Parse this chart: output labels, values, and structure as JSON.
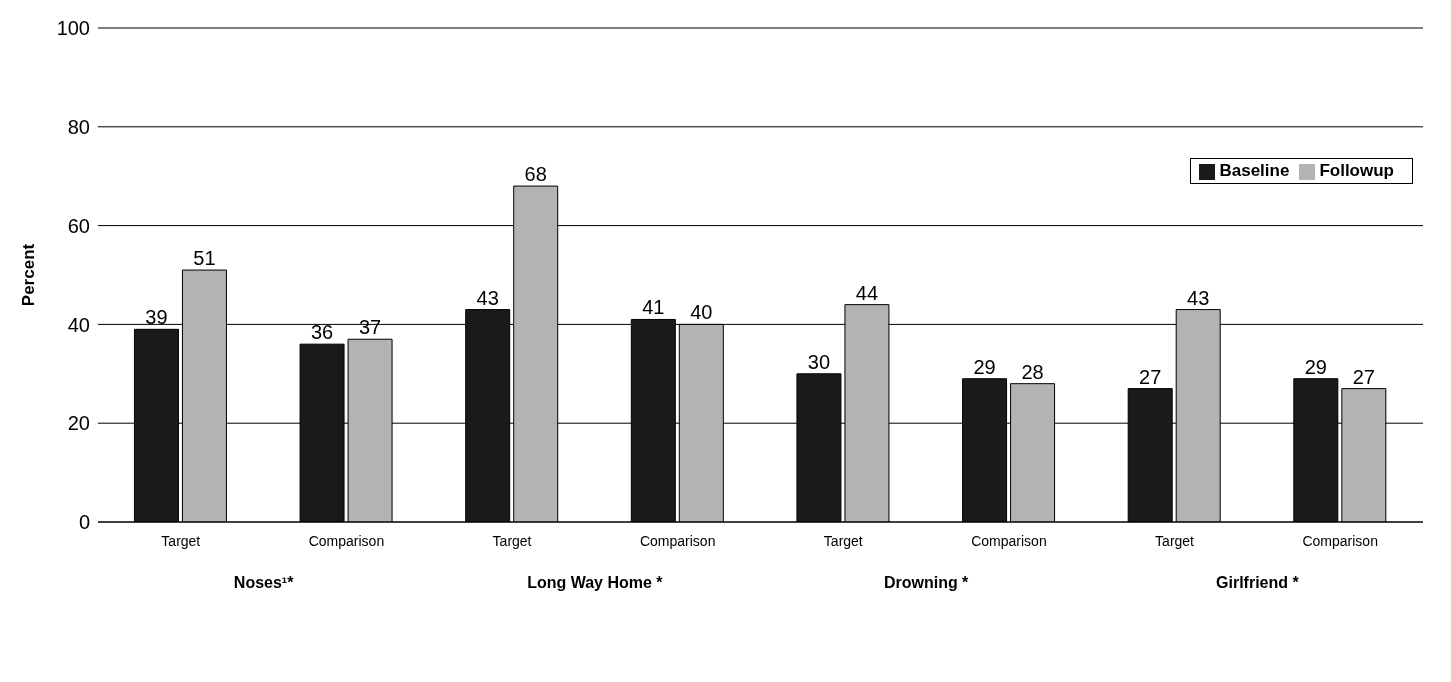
{
  "chart_data": {
    "type": "bar",
    "ylabel": "Percent",
    "categories": [
      "Target",
      "Comparison",
      "Target",
      "Comparison",
      "Target",
      "Comparison",
      "Target",
      "Comparison"
    ],
    "series": [
      {
        "name": "Baseline",
        "color": "#1a1a1a",
        "values": [
          39,
          36,
          43,
          41,
          30,
          29,
          27,
          29
        ]
      },
      {
        "name": "Followup",
        "color": "#b3b3b3",
        "values": [
          51,
          37,
          68,
          40,
          44,
          28,
          43,
          27
        ]
      }
    ],
    "ylim": [
      0,
      100
    ],
    "yticks": [
      0,
      20,
      40,
      60,
      80,
      100
    ],
    "grid": "y",
    "legend": "top right",
    "data_labels": true,
    "annotations": [
      "Noses¹*",
      "Long Way Home *",
      "Drowning *",
      "Girlfriend *"
    ]
  }
}
